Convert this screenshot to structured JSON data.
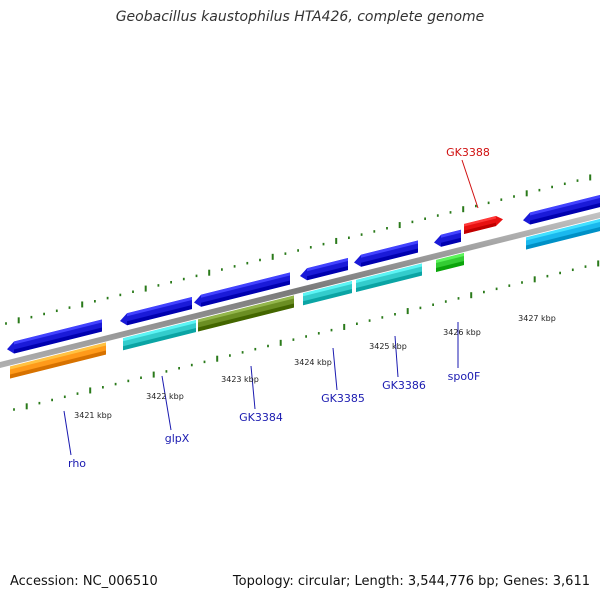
{
  "title": "Geobacillus kaustophilus HTA426, complete genome",
  "footer": {
    "accession": "Accession: NC_006510",
    "topology": "Topology: circular; Length: 3,544,776 bp; Genes: 3,611"
  },
  "colors": {
    "backbone": "#808080",
    "ticks": "#2a7a1a",
    "cds_forward": "#1a1ad8",
    "gene_label": "#1a1ab0",
    "highlight": "#e81010",
    "highlight_label": "#d01010"
  },
  "scale": {
    "unit": "kbp",
    "major_ticks": [
      {
        "value": 3421,
        "label": "3421 kbp"
      },
      {
        "value": 3422,
        "label": "3422 kbp"
      },
      {
        "value": 3423,
        "label": "3423 kbp"
      },
      {
        "value": 3424,
        "label": "3424 kbp"
      },
      {
        "value": 3425,
        "label": "3425 kbp"
      },
      {
        "value": 3426,
        "label": "3426 kbp"
      },
      {
        "value": 3427,
        "label": "3427 kbp"
      }
    ]
  },
  "genes": [
    {
      "name": "rho",
      "color": "#ff9a1a"
    },
    {
      "name": "glpX",
      "color": "#33cccc"
    },
    {
      "name": "GK3384",
      "color": "#6b8e23"
    },
    {
      "name": "GK3385",
      "color": "#33cccc"
    },
    {
      "name": "GK3386",
      "color": "#33cccc"
    },
    {
      "name": "spo0F",
      "color": "#33cc33"
    },
    {
      "name": "GK3388",
      "color": "#e81010"
    }
  ]
}
